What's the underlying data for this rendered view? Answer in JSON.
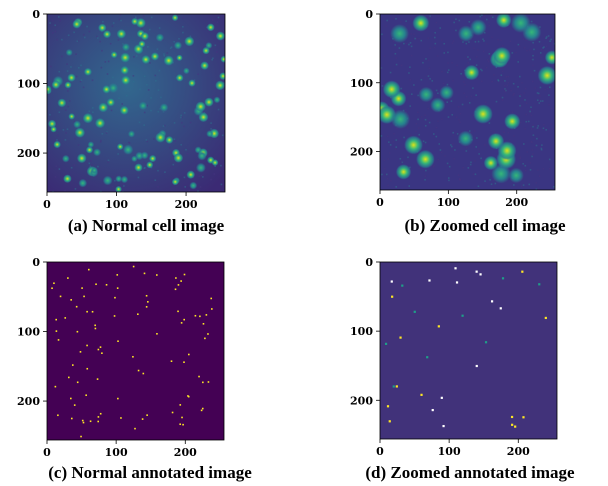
{
  "figure": {
    "colors": {
      "background_dark": "#3b1d73",
      "background_annot": "#440154",
      "background_annot_zoom": "#41327a",
      "cell_dim": "#26828e",
      "cell_mid": "#35b779",
      "cell_bright": "#dde318",
      "dot": "#fde725",
      "dot_dim": "#1f9e89",
      "dot_white": "#ffffff"
    },
    "panels": [
      {
        "id": "a",
        "caption": "(a) Normal cell image",
        "kind": "cells",
        "x_ticks": [
          "0",
          "100",
          "200"
        ],
        "y_ticks": [
          "0",
          "100",
          "200"
        ],
        "axis_range": [
          0,
          256
        ]
      },
      {
        "id": "b",
        "caption": "(b) Zoomed cell image",
        "kind": "cells-zoomed",
        "x_ticks": [
          "0",
          "100",
          "200"
        ],
        "y_ticks": [
          "0",
          "100",
          "200"
        ],
        "axis_range": [
          0,
          256
        ]
      },
      {
        "id": "c",
        "caption": "(c) Normal annotated image",
        "kind": "dots",
        "x_ticks": [
          "0",
          "100",
          "200"
        ],
        "y_ticks": [
          "0",
          "100",
          "200"
        ],
        "axis_range": [
          0,
          256
        ]
      },
      {
        "id": "d",
        "caption": "(d) Zoomed annotated image",
        "kind": "dots-zoomed",
        "x_ticks": [
          "0",
          "100",
          "200"
        ],
        "y_ticks": [
          "0",
          "100",
          "200"
        ],
        "axis_range": [
          0,
          256
        ]
      }
    ]
  }
}
